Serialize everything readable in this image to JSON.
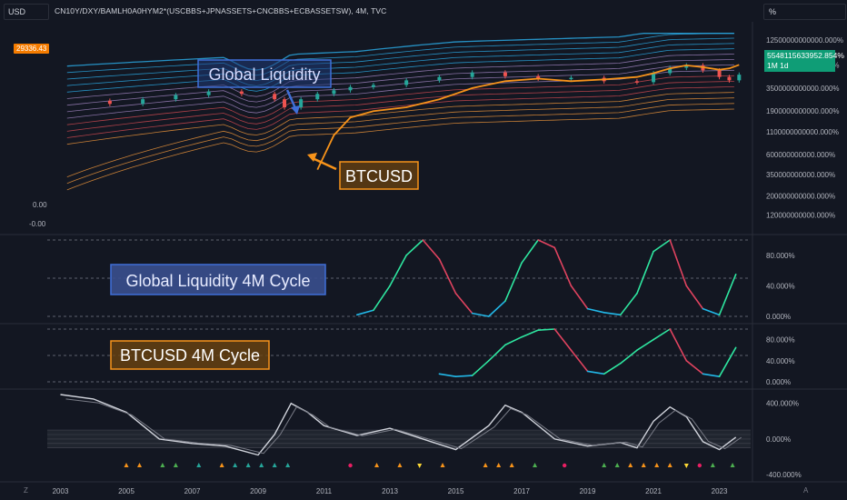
{
  "header": {
    "currency": "USD",
    "symbol": "CN10Y/DXY/BAMLH0A0HYM2*(USCBBS+JPNASSETS+CNCBBS+ECBASSETSW), 4M, TVC",
    "scale_label": "%"
  },
  "price_tag": "29336.43",
  "last_value": {
    "value": "5548115633952.854%",
    "timeframe": "1M 1d"
  },
  "left_axis_labels": [
    "0.00",
    "-0.00"
  ],
  "corner_left": "Z",
  "corner_right": "A",
  "annotations": {
    "global_liquidity": "Global Liquidity",
    "btcusd": "BTCUSD",
    "cycle1": "Global Liquidity 4M Cycle",
    "cycle2": "BTCUSD 4M Cycle"
  },
  "colors": {
    "background": "#131722",
    "grid": "#2a2e39",
    "btc": "#f7931a",
    "candle_up": "#26a69a",
    "candle_down": "#ef5350",
    "cycle_rise": "#2ee6a0",
    "cycle_fall": "#e0435f",
    "cycle_low": "#22b8e8",
    "annotation_blue": "#3f6fd8",
    "annotation_orange": "#f7931a"
  },
  "chart_data": [
    {
      "type": "line",
      "pane": "main",
      "x_ticks": [
        "2003",
        "2005",
        "2007",
        "2009",
        "2011",
        "2013",
        "2015",
        "2017",
        "2019",
        "2021",
        "2023"
      ],
      "y_ticks": [
        "12500000000000.000%",
        "6500000000000.000%",
        "3500000000000.000%",
        "1900000000000.000%",
        "1100000000000.000%",
        "600000000000.000%",
        "350000000000.000%",
        "200000000000.000%",
        "120000000000.000%"
      ],
      "y_scale": "log",
      "series": [
        {
          "name": "Global Liquidity",
          "values": [
            2500,
            2300,
            2600,
            2900,
            3200,
            3000,
            2600,
            2100,
            2600,
            3000,
            3300,
            3600,
            3800,
            4300,
            4700,
            5300,
            4800,
            4500,
            4600,
            4200,
            4100,
            5200,
            6000,
            6400,
            5600,
            4700,
            4300,
            5000
          ]
        },
        {
          "name": "BTCUSD",
          "values": [
            null,
            null,
            null,
            null,
            null,
            null,
            null,
            null,
            null,
            400,
            1000,
            1600,
            1900,
            2100,
            2600,
            3500,
            4200,
            4500,
            4200,
            4400,
            4700,
            5200,
            5900,
            6400,
            6100,
            5700,
            5900,
            6500
          ]
        }
      ],
      "x_years": [
        2003.5,
        2004.5,
        2005.5,
        2006.5,
        2007.5,
        2008.5,
        2009.5,
        2009.8,
        2010.3,
        2010.8,
        2011.3,
        2011.8,
        2012.5,
        2013.5,
        2014.5,
        2015.5,
        2016.5,
        2017.5,
        2018.5,
        2019.5,
        2020.5,
        2021.0,
        2021.5,
        2022.0,
        2022.5,
        2023.0,
        2023.3,
        2023.6
      ]
    },
    {
      "type": "line",
      "pane": "cycle1",
      "y_ticks": [
        "80.000%",
        "40.000%",
        "0.000%"
      ],
      "ylim": [
        0,
        100
      ],
      "x": [
        2012.0,
        2012.5,
        2013.0,
        2013.5,
        2014.0,
        2014.5,
        2015.0,
        2015.5,
        2016.0,
        2016.5,
        2017.0,
        2017.5,
        2018.0,
        2018.5,
        2019.0,
        2019.5,
        2020.0,
        2020.5,
        2021.0,
        2021.5,
        2022.0,
        2022.5,
        2023.0,
        2023.5
      ],
      "values": [
        2,
        8,
        40,
        80,
        100,
        75,
        30,
        4,
        0,
        20,
        70,
        100,
        90,
        40,
        10,
        5,
        2,
        30,
        85,
        100,
        40,
        10,
        2,
        55
      ]
    },
    {
      "type": "line",
      "pane": "cycle2",
      "y_ticks": [
        "80.000%",
        "40.000%",
        "0.000%"
      ],
      "ylim": [
        0,
        100
      ],
      "x": [
        2014.5,
        2015.0,
        2015.5,
        2016.0,
        2016.5,
        2017.0,
        2017.5,
        2018.0,
        2018.5,
        2019.0,
        2019.5,
        2020.0,
        2020.5,
        2021.0,
        2021.5,
        2022.0,
        2022.5,
        2023.0,
        2023.5
      ],
      "values": [
        15,
        10,
        12,
        40,
        70,
        85,
        98,
        100,
        60,
        20,
        15,
        35,
        60,
        80,
        100,
        40,
        15,
        10,
        65
      ]
    },
    {
      "type": "line",
      "pane": "oscillator",
      "y_ticks": [
        "400.000%",
        "0.000%",
        "-400.000%"
      ],
      "ylim": [
        -420,
        520
      ],
      "x": [
        2003.0,
        2004.0,
        2005.0,
        2006.0,
        2007.0,
        2008.0,
        2009.0,
        2009.5,
        2010.0,
        2010.5,
        2011.0,
        2012.0,
        2013.0,
        2014.0,
        2015.0,
        2016.0,
        2016.5,
        2017.0,
        2018.0,
        2019.0,
        2020.0,
        2020.5,
        2021.0,
        2021.5,
        2022.0,
        2022.5,
        2023.0,
        2023.5
      ],
      "values": [
        500,
        450,
        300,
        0,
        -50,
        -80,
        -180,
        50,
        400,
        300,
        150,
        40,
        120,
        0,
        -120,
        150,
        380,
        300,
        0,
        -80,
        -40,
        -100,
        200,
        360,
        250,
        -30,
        -120,
        20
      ]
    }
  ]
}
